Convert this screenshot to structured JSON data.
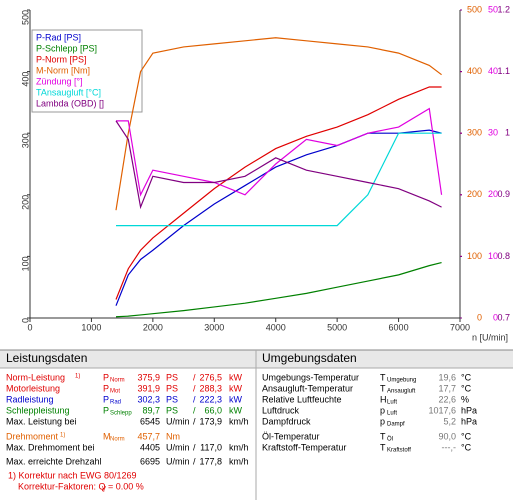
{
  "chart_data": {
    "type": "line",
    "xlabel": "n [U/min]",
    "x": [
      1400,
      1600,
      1800,
      2000,
      2500,
      3000,
      3500,
      4000,
      4500,
      5000,
      5500,
      6000,
      6500,
      6700
    ],
    "xlim": [
      0,
      7000
    ],
    "xticks": [
      0,
      1000,
      2000,
      3000,
      4000,
      5000,
      6000,
      7000
    ],
    "ylim": [
      0,
      500
    ],
    "yticks": [
      0,
      100,
      200,
      300,
      400,
      500
    ],
    "y2lim": [
      0,
      500
    ],
    "y2ticks": [
      0,
      100,
      200,
      300,
      400,
      500
    ],
    "y3lim": [
      0,
      50
    ],
    "y3ticks": [
      0,
      10,
      20,
      30,
      40,
      50
    ],
    "y4lim": [
      0.7,
      1.2
    ],
    "y4ticks": [
      0.7,
      0.8,
      0.9,
      1.0,
      1.1,
      1.2
    ],
    "grid": false,
    "series": [
      {
        "name": "P-Rad [PS]",
        "color": "#0000cc",
        "values": [
          20,
          70,
          95,
          110,
          150,
          185,
          215,
          245,
          265,
          280,
          300,
          300,
          305,
          300
        ]
      },
      {
        "name": "P-Schlepp [PS]",
        "color": "#008000",
        "values": [
          2,
          3,
          5,
          7,
          12,
          18,
          24,
          32,
          40,
          50,
          60,
          70,
          85,
          90
        ]
      },
      {
        "name": "P-Norm [PS]",
        "color": "#e00000",
        "values": [
          30,
          80,
          110,
          130,
          170,
          210,
          245,
          275,
          295,
          310,
          330,
          355,
          375,
          375
        ]
      },
      {
        "name": "M-Norm [Nm]",
        "color": "#e06000",
        "axis": "y2",
        "values": [
          175,
          300,
          400,
          430,
          440,
          445,
          450,
          455,
          450,
          445,
          440,
          430,
          410,
          395
        ]
      },
      {
        "name": "Zündung [°]",
        "color": "#e000e0",
        "axis": "y3",
        "values": [
          32,
          32,
          20,
          24,
          23,
          22,
          20,
          25,
          29,
          28,
          30,
          31,
          34,
          20
        ]
      },
      {
        "name": "TAnsaugluft [°C]",
        "color": "#00d8d8",
        "axis": "y3",
        "values": [
          15,
          15,
          15,
          15,
          15,
          15,
          15,
          15,
          15,
          15,
          20,
          30,
          30,
          30
        ]
      },
      {
        "name": "Lambda (OBD) []",
        "color": "#800080",
        "axis": "y4",
        "values": [
          1.02,
          0.99,
          0.88,
          0.93,
          0.92,
          0.92,
          0.93,
          0.96,
          0.94,
          0.93,
          0.92,
          0.91,
          0.89,
          0.88
        ]
      }
    ]
  },
  "leistung": {
    "title": "Leistungsdaten",
    "rows": [
      {
        "label": "Norm-Leistung",
        "note": "1)",
        "sym": "P",
        "sub": "Norm",
        "v1": "375,9",
        "u1": "PS",
        "slash": "/",
        "v2": "276,5",
        "u2": "kW",
        "color": "#e00000"
      },
      {
        "label": "Motorleistung",
        "sym": "P",
        "sub": "Mot",
        "v1": "391,9",
        "u1": "PS",
        "slash": "/",
        "v2": "288,3",
        "u2": "kW",
        "color": "#e00000"
      },
      {
        "label": "Radleistung",
        "sym": "P",
        "sub": "Rad",
        "v1": "302,3",
        "u1": "PS",
        "slash": "/",
        "v2": "222,3",
        "u2": "kW",
        "color": "#0000cc"
      },
      {
        "label": "Schleppleistung",
        "sym": "P",
        "sub": "Schlepp",
        "v1": "89,7",
        "u1": "PS",
        "slash": "/",
        "v2": "66,0",
        "u2": "kW",
        "color": "#008000"
      },
      {
        "label": "Max. Leistung bei",
        "v1": "6545",
        "u1": "U/min",
        "slash": "/",
        "v2": "173,9",
        "u2": "km/h",
        "color": "#000000"
      },
      {
        "label": "Drehmoment",
        "note": "1)",
        "sym": "M",
        "sub": "Norm",
        "v1": "457,7",
        "u1": "Nm",
        "color": "#e06000"
      },
      {
        "label": "Max. Drehmoment bei",
        "v1": "4405",
        "u1": "U/min",
        "slash": "/",
        "v2": "117,0",
        "u2": "km/h",
        "color": "#000000"
      },
      {
        "label": "Max. erreichte Drehzahl",
        "v1": "6695",
        "u1": "U/min",
        "slash": "/",
        "v2": "177,8",
        "u2": "km/h",
        "color": "#000000"
      }
    ],
    "footnote": {
      "line1": "1) Korrektur nach EWG 80/1269",
      "line2": "Korrektur-Faktoren: Q",
      "sub": "V",
      "rest": "=   0.00 %"
    }
  },
  "umgebung": {
    "title": "Umgebungsdaten",
    "rows": [
      {
        "label": "Umgebungs-Temperatur",
        "sym": "T",
        "sub": "Umgebung",
        "v1": "19,6",
        "u1": "°C"
      },
      {
        "label": "Ansaugluft-Temperatur",
        "sym": "T",
        "sub": "Ansaugluft",
        "v1": "17,7",
        "u1": "°C"
      },
      {
        "label": "Relative Luftfeuchte",
        "sym": "H",
        "sub": "Luft",
        "v1": "22,6",
        "u1": "%"
      },
      {
        "label": "Luftdruck",
        "sym": "p",
        "sub": "Luft",
        "v1": "1017,6",
        "u1": "hPa"
      },
      {
        "label": "Dampfdruck",
        "sym": "p",
        "sub": "Dampf",
        "v1": "5,2",
        "u1": "hPa"
      },
      {
        "label": "Öl-Temperatur",
        "sym": "T",
        "sub": "Öl",
        "v1": "90,0",
        "u1": "°C"
      },
      {
        "label": "Kraftstoff-Temperatur",
        "sym": "T",
        "sub": "Kraftstoff",
        "v1": "---,-",
        "u1": "°C"
      }
    ]
  }
}
